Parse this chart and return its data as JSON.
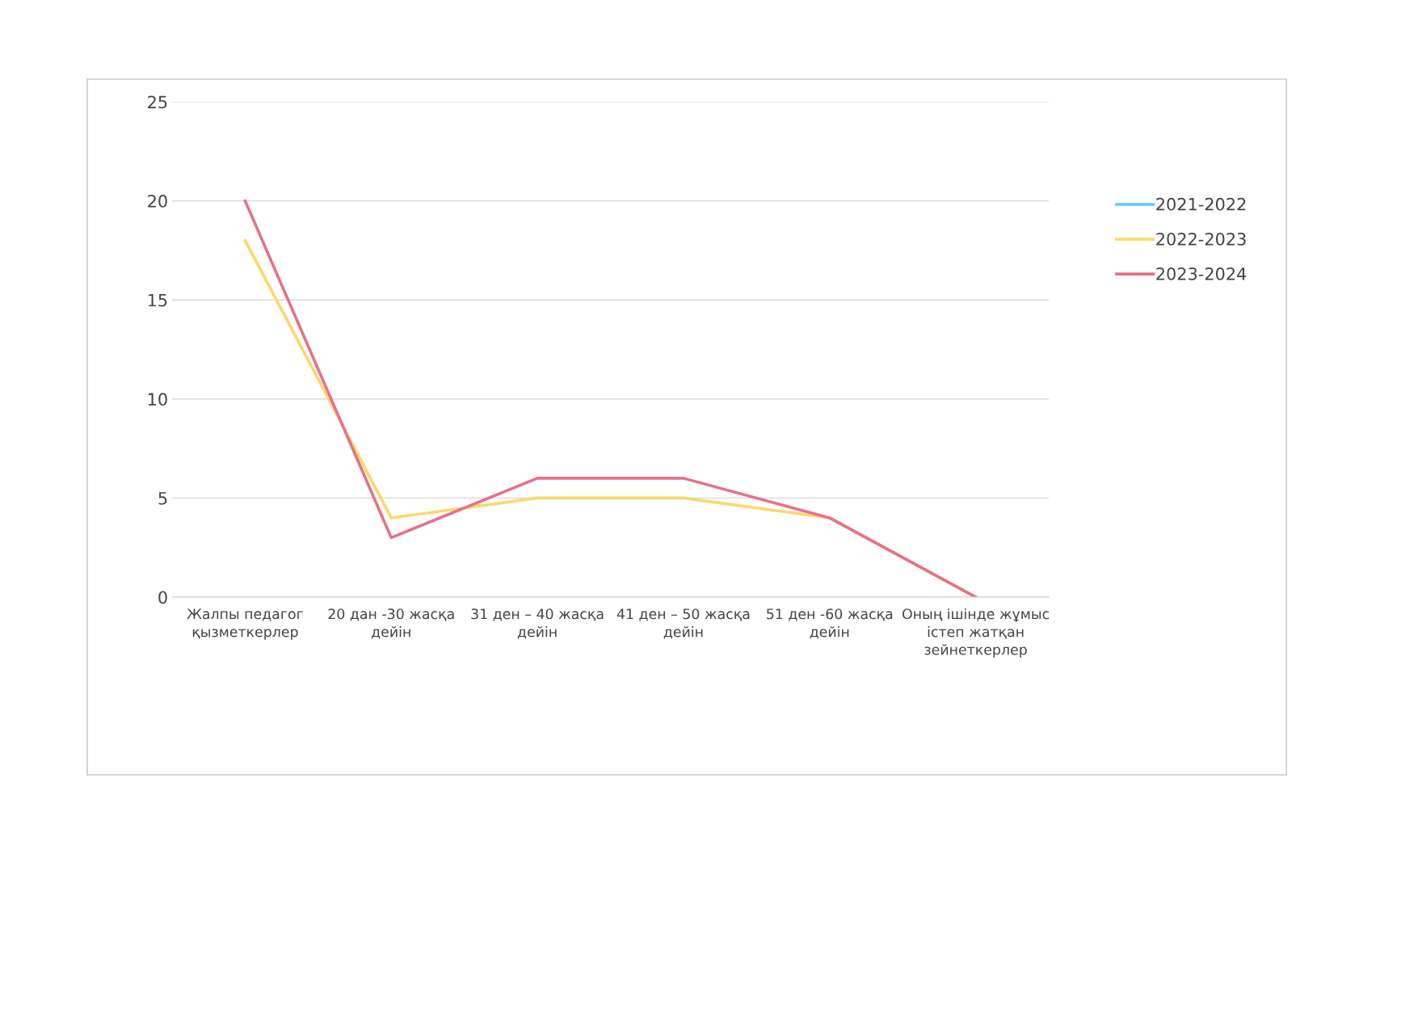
{
  "chart_data": {
    "type": "line",
    "categories": [
      "Жалпы педагог\nқызметкерлер",
      "20 дан -30 жасқа\nдейін",
      "31 ден – 40 жасқа\nдейін",
      "41 ден – 50 жасқа\nдейін",
      "51 ден -60 жасқа\nдейін",
      "Оның ішінде жұмыс\nістеп жатқан\nзейнеткерлер"
    ],
    "series": [
      {
        "name": "2021-2022",
        "color": "#5bcdf0",
        "values": [
          null,
          null,
          null,
          null,
          null,
          null
        ]
      },
      {
        "name": "2022-2023",
        "color": "#fdd86a",
        "values": [
          18,
          4,
          5,
          5,
          4,
          0
        ]
      },
      {
        "name": "2023-2024",
        "color": "#e8708a",
        "values": [
          20,
          3,
          6,
          6,
          4,
          0
        ]
      }
    ],
    "ylim": [
      0,
      25
    ],
    "yticks": [
      0,
      5,
      10,
      15,
      20,
      25
    ],
    "grid": "y",
    "legend": "right",
    "marker": "none",
    "line_style": "solid"
  }
}
